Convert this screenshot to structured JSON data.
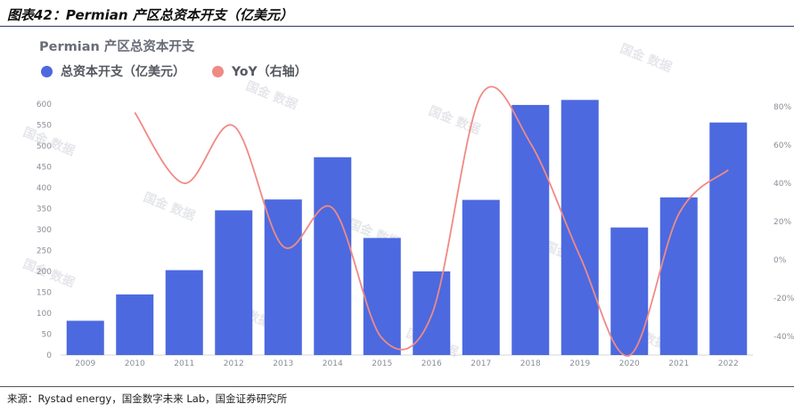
{
  "figure_title": "图表42：Permian 产区总资本开支（亿美元）",
  "source_note": "来源：Rystad energy，国金数字未来 Lab，国金证券研究所",
  "watermark_text": "国金 数据",
  "colors": {
    "bar": "#4c69e0",
    "line": "#f08a84",
    "axis_text": "#8a8d96"
  },
  "chart_data": {
    "type": "bar",
    "title": "Permian 产区总资本开支",
    "categories": [
      "2009",
      "2010",
      "2011",
      "2012",
      "2013",
      "2014",
      "2015",
      "2016",
      "2017",
      "2018",
      "2019",
      "2020",
      "2021",
      "2022"
    ],
    "series": [
      {
        "name": "总资本开支（亿美元）",
        "type": "bar",
        "axis": "left",
        "values": [
          82,
          145,
          203,
          346,
          372,
          473,
          280,
          200,
          371,
          598,
          610,
          305,
          377,
          556
        ]
      },
      {
        "name": "YoY（右轴）",
        "type": "line",
        "axis": "right",
        "unit": "%",
        "values": [
          null,
          77,
          40,
          70,
          7,
          27,
          -41,
          -29,
          86,
          61,
          2,
          -50,
          24,
          47
        ]
      }
    ],
    "y_left": {
      "range": [
        0,
        600
      ],
      "ticks": [
        0,
        50,
        100,
        150,
        200,
        250,
        300,
        350,
        400,
        450,
        500,
        550,
        600
      ]
    },
    "y_right": {
      "range": [
        -50,
        90
      ],
      "ticks": [
        "80%",
        "60%",
        "40%",
        "20%",
        "0%",
        "-20%",
        "-40%"
      ],
      "tick_values": [
        80,
        60,
        40,
        20,
        0,
        -20,
        -40
      ]
    },
    "legend_position": "top-left",
    "grid": false
  }
}
